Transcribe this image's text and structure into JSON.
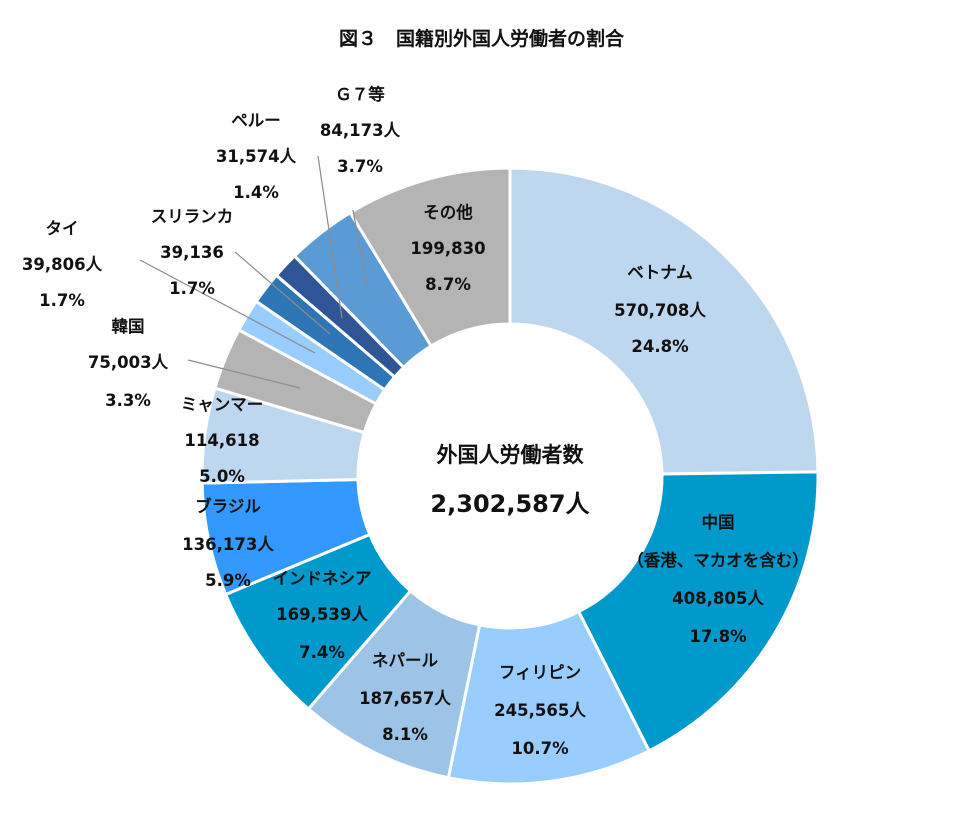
{
  "title": "図３　国籍別外国人労働者の割合",
  "center": {
    "title": "外国人労働者数",
    "total": "2,302,587人"
  },
  "chart_data": {
    "type": "pie",
    "variant": "donut",
    "title": "図３　国籍別外国人労働者の割合",
    "total": 2302587,
    "slices": [
      {
        "id": "vietnam",
        "name": "ベトナム",
        "value": 570708,
        "percent": 24.8,
        "color": "#bdd7ee",
        "text": [
          "ベトナム",
          "570,708人",
          "24.8%"
        ]
      },
      {
        "id": "china",
        "name": "中国（香港、マカオを含む）",
        "value": 408805,
        "percent": 17.8,
        "color": "#0099cc",
        "text": [
          "中国",
          "（香港、マカオを含む）",
          "408,805人",
          "17.8%"
        ]
      },
      {
        "id": "philippines",
        "name": "フィリピン",
        "value": 245565,
        "percent": 10.7,
        "color": "#99ccff",
        "text": [
          "フィリピン",
          "245,565人",
          "10.7%"
        ]
      },
      {
        "id": "nepal",
        "name": "ネパール",
        "value": 187657,
        "percent": 8.1,
        "color": "#9dc3e6",
        "text": [
          "ネパール",
          "187,657人",
          "8.1%"
        ]
      },
      {
        "id": "indonesia",
        "name": "インドネシア",
        "value": 169539,
        "percent": 7.4,
        "color": "#0099cc",
        "text": [
          "インドネシア",
          "169,539人",
          "7.4%"
        ]
      },
      {
        "id": "brazil",
        "name": "ブラジル",
        "value": 136173,
        "percent": 5.9,
        "color": "#3399ff",
        "text": [
          "ブラジル",
          "136,173人",
          "5.9%"
        ]
      },
      {
        "id": "myanmar",
        "name": "ミャンマー",
        "value": 114618,
        "percent": 5.0,
        "color": "#bdd7ee",
        "text": [
          "ミャンマー",
          "114,618",
          "5.0%"
        ]
      },
      {
        "id": "korea",
        "name": "韓国",
        "value": 75003,
        "percent": 3.3,
        "color": "#b4b4b4",
        "text": [
          "韓国",
          "75,003人",
          "3.3%"
        ]
      },
      {
        "id": "thailand",
        "name": "タイ",
        "value": 39806,
        "percent": 1.7,
        "color": "#99ccff",
        "text": [
          "タイ",
          "39,806人",
          "1.7%"
        ]
      },
      {
        "id": "srilanka",
        "name": "スリランカ",
        "value": 39136,
        "percent": 1.7,
        "color": "#2e75b6",
        "text": [
          "スリランカ",
          "39,136",
          "1.7%"
        ]
      },
      {
        "id": "peru",
        "name": "ペルー",
        "value": 31574,
        "percent": 1.4,
        "color": "#2f5597",
        "text": [
          "ペルー",
          "31,574人",
          "1.4%"
        ]
      },
      {
        "id": "g7",
        "name": "Ｇ７等",
        "value": 84173,
        "percent": 3.7,
        "color": "#5b9bd5",
        "text": [
          "Ｇ７等",
          "84,173人",
          "3.7%"
        ]
      },
      {
        "id": "other",
        "name": "その他",
        "value": 199830,
        "percent": 8.7,
        "color": "#b4b4b4",
        "text": [
          "その他",
          "199,830",
          "8.7%"
        ]
      }
    ]
  }
}
